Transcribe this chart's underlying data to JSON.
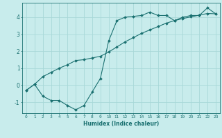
{
  "xlabel": "Humidex (Indice chaleur)",
  "bg_color": "#c8ecec",
  "line_color": "#1a7070",
  "grid_color": "#a8d8d8",
  "xlim": [
    -0.5,
    23.5
  ],
  "ylim": [
    -1.65,
    4.85
  ],
  "xticks": [
    0,
    1,
    2,
    3,
    4,
    5,
    6,
    7,
    8,
    9,
    10,
    11,
    12,
    13,
    14,
    15,
    16,
    17,
    18,
    19,
    20,
    21,
    22,
    23
  ],
  "yticks": [
    -1,
    0,
    1,
    2,
    3,
    4
  ],
  "line1_x": [
    0,
    1,
    2,
    3,
    4,
    5,
    6,
    7,
    8,
    9,
    10,
    11,
    12,
    13,
    14,
    15,
    16,
    17,
    18,
    19,
    20,
    21,
    22,
    23
  ],
  "line1_y": [
    -0.3,
    0.05,
    -0.65,
    -0.9,
    -0.9,
    -1.2,
    -1.45,
    -1.2,
    -0.4,
    0.4,
    2.6,
    3.8,
    4.0,
    4.05,
    4.1,
    4.3,
    4.1,
    4.1,
    3.8,
    4.0,
    4.1,
    4.1,
    4.55,
    4.2
  ],
  "line2_x": [
    0,
    1,
    2,
    3,
    4,
    5,
    6,
    7,
    8,
    9,
    10,
    11,
    12,
    13,
    14,
    15,
    16,
    17,
    18,
    19,
    20,
    21,
    22,
    23
  ],
  "line2_y": [
    -0.3,
    0.05,
    0.5,
    0.75,
    1.0,
    1.2,
    1.45,
    1.5,
    1.6,
    1.7,
    1.95,
    2.25,
    2.55,
    2.8,
    3.05,
    3.25,
    3.45,
    3.65,
    3.8,
    3.92,
    4.02,
    4.12,
    4.22,
    4.2
  ]
}
